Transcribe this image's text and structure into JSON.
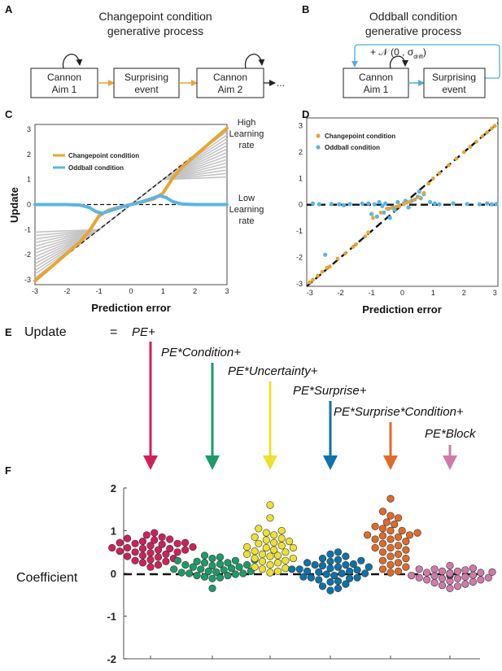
{
  "panels": {
    "A": {
      "letter": "A",
      "title_line1": "Changepoint condition",
      "title_line2": "generative process",
      "box1_line1": "Cannon",
      "box1_line2": "Aim 1",
      "box2_line1": "Surprising",
      "box2_line2": "event",
      "box3_line1": "Cannon",
      "box3_line2": "Aim 2",
      "ellipsis": "..."
    },
    "B": {
      "letter": "B",
      "title_line1": "Oddball condition",
      "title_line2": "generative process",
      "box1_line1": "Cannon",
      "box1_line2": "Aim 1",
      "box2_line1": "Surprising",
      "box2_line2": "event",
      "drift_label": "+ 𝒩 (0 , σ",
      "drift_sub": "drift",
      "drift_close": ")"
    },
    "C": {
      "letter": "C",
      "high_line1": "High",
      "high_line2": "Learning",
      "high_line3": "rate",
      "low_line1": "Low",
      "low_line2": "Learning",
      "low_line3": "rate"
    },
    "D": {
      "letter": "D"
    },
    "E": {
      "letter": "E",
      "lhs": "Update",
      "equals": "=",
      "terms": [
        "PE+",
        "PE*Condition+",
        "PE*Uncertainty+",
        "PE*Surprise+",
        "PE*Surprise*Condition+",
        "PE*Block"
      ]
    },
    "F": {
      "letter": "F",
      "ylabel": "Coefficient"
    }
  },
  "colors": {
    "orange": "#E8A530",
    "blue": "#5BB4E5",
    "gray": "#c4c4c4",
    "arrow_orange": "#E8A530",
    "arrow_blue": "#4FAEE0",
    "terms": [
      "#D0205A",
      "#1E9A6A",
      "#ECE030",
      "#0D72A8",
      "#E06A28",
      "#CF7BAA"
    ]
  },
  "chart_data": [
    {
      "type": "line",
      "panel": "C",
      "xlabel": "Prediction error",
      "ylabel": "Update",
      "xlim": [
        -3,
        3
      ],
      "ylim": [
        -3.2,
        3.2
      ],
      "xticks": [
        -3,
        -2,
        -1,
        0,
        1,
        2,
        3
      ],
      "yticks": [
        -3,
        -2,
        -1,
        0,
        1,
        2,
        3
      ],
      "gray_learning_rates": [
        0.05,
        0.12,
        0.19,
        0.26,
        0.33,
        0.4,
        0.47,
        0.54,
        0.61,
        0.68,
        0.75,
        0.82,
        0.89,
        0.96
      ],
      "legend": [
        "Changepoint condition",
        "Oddball condition"
      ],
      "series": [
        {
          "name": "Changepoint condition",
          "x": [
            -3,
            -2.5,
            -2,
            -1.6,
            -1.3,
            -1,
            -0.7,
            -0.4,
            0,
            0.4,
            0.7,
            1,
            1.3,
            1.6,
            2,
            2.5,
            3
          ],
          "y": [
            -3.05,
            -2.5,
            -1.95,
            -1.5,
            -1.05,
            -0.45,
            -0.22,
            -0.12,
            0,
            0.12,
            0.22,
            0.45,
            1.05,
            1.5,
            1.95,
            2.5,
            3.05
          ]
        },
        {
          "name": "Oddball condition",
          "x": [
            -3,
            -2,
            -1.6,
            -1.3,
            -1.1,
            -0.9,
            -0.6,
            -0.3,
            0,
            0.3,
            0.6,
            0.9,
            1.1,
            1.3,
            1.6,
            2,
            3
          ],
          "y": [
            0,
            0,
            -0.02,
            -0.12,
            -0.28,
            -0.35,
            -0.22,
            -0.1,
            0,
            0.1,
            0.22,
            0.35,
            0.28,
            0.12,
            0.02,
            0,
            0
          ]
        }
      ]
    },
    {
      "type": "scatter",
      "panel": "D",
      "xlabel": "Prediction error",
      "xlim": [
        -3.1,
        3.1
      ],
      "ylim": [
        -3.1,
        3.3
      ],
      "xticks": [
        -3,
        -2,
        -1,
        0,
        1,
        2,
        3
      ],
      "yticks": [
        -3,
        -2,
        -1,
        0,
        1,
        2,
        3
      ],
      "legend": [
        "Changepoint condition",
        "Oddball condition"
      ],
      "series": [
        {
          "name": "Changepoint condition",
          "x": [
            -3,
            -2.9,
            -2.75,
            -2.6,
            -2.45,
            -2.35,
            -2.1,
            -1.85,
            -1.6,
            -1.5,
            -1.2,
            -1.1,
            -0.95,
            -0.7,
            -0.5,
            -0.35,
            -0.2,
            -0.1,
            0.05,
            0.15,
            0.25,
            0.4,
            0.55,
            0.7,
            0.85,
            1,
            1.2,
            1.5,
            1.75,
            2,
            2.2,
            2.4,
            2.6,
            2.75,
            2.9,
            3
          ],
          "y": [
            -2.95,
            -2.85,
            -2.7,
            -2.55,
            -2.4,
            -2.35,
            -2.05,
            -1.85,
            -1.6,
            -1.5,
            -1.2,
            -1.05,
            -0.5,
            -0.3,
            -0.15,
            -0.12,
            -0.08,
            -0.03,
            0.02,
            0.08,
            0.12,
            0.2,
            0.28,
            0.45,
            0.8,
            1.0,
            1.2,
            1.5,
            1.75,
            2.0,
            2.2,
            2.4,
            2.6,
            2.75,
            2.9,
            3.0
          ]
        },
        {
          "name": "Oddball condition",
          "x": [
            -2.9,
            -2.7,
            -2.3,
            -2.5,
            -2.05,
            -1.7,
            -1.1,
            -1.0,
            -0.9,
            -0.82,
            -0.75,
            -0.65,
            -0.6,
            -0.55,
            -0.45,
            -0.4,
            -0.3,
            -0.25,
            -0.15,
            -0.1,
            0.05,
            0.1,
            0.2,
            0.3,
            0.4,
            0.5,
            0.55,
            0.6,
            0.7,
            0.9,
            1.05,
            1.2,
            1.65,
            2.1,
            2.5,
            2.75,
            2.9,
            3.05,
            -1.9,
            -1.3
          ],
          "y": [
            0.05,
            0.02,
            0.03,
            -1.9,
            0.02,
            0.03,
            0.05,
            -0.35,
            0.02,
            -0.45,
            0.1,
            -0.05,
            -0.3,
            0.05,
            -0.15,
            -0.5,
            -0.1,
            -0.2,
            0.1,
            -0.05,
            0.05,
            0.15,
            -0.1,
            0.15,
            0.2,
            0.3,
            0.5,
            0.25,
            0.4,
            0.1,
            0.05,
            0.02,
            0.05,
            0.03,
            0.02,
            0.05,
            0.02,
            0.03,
            -0.02,
            0.04
          ]
        }
      ]
    },
    {
      "type": "scatter",
      "panel": "F",
      "ylabel": "Coefficient",
      "ylim": [
        -2,
        2
      ],
      "yticks": [
        -2,
        -1,
        0,
        1,
        2
      ],
      "categories": [
        "PE+",
        "PE*Condition+",
        "PE*Uncertainty+",
        "PE*Surprise+",
        "PE*Surprise*Condition+",
        "PE*Block"
      ],
      "series": [
        {
          "name": "PE+",
          "values": [
            0.95,
            0.9,
            0.85,
            0.82,
            0.8,
            0.78,
            0.75,
            0.72,
            0.7,
            0.7,
            0.68,
            0.65,
            0.62,
            0.6,
            0.6,
            0.58,
            0.55,
            0.55,
            0.52,
            0.5,
            0.5,
            0.48,
            0.45,
            0.42,
            0.4,
            0.38,
            0.35,
            0.32,
            0.3,
            0.28,
            0.25,
            0.2,
            0.15,
            0.65,
            0.72,
            0.58
          ]
        },
        {
          "name": "PE*Condition+",
          "values": [
            0.42,
            0.38,
            0.35,
            0.32,
            0.3,
            0.28,
            0.25,
            0.22,
            0.2,
            0.18,
            0.15,
            0.12,
            0.1,
            0.08,
            0.05,
            0.03,
            0.02,
            0.0,
            -0.02,
            -0.05,
            -0.08,
            -0.1,
            -0.12,
            -0.35,
            0.25,
            0.15,
            0.05,
            -0.05,
            0.1,
            0.2,
            0.3,
            0.0
          ]
        },
        {
          "name": "PE*Uncertainty+",
          "values": [
            1.6,
            1.3,
            1.05,
            1.0,
            0.95,
            0.9,
            0.85,
            0.82,
            0.78,
            0.75,
            0.72,
            0.7,
            0.65,
            0.62,
            0.6,
            0.55,
            0.52,
            0.5,
            0.45,
            0.42,
            0.4,
            0.35,
            0.3,
            0.28,
            0.25,
            0.2,
            0.15,
            0.12,
            0.1,
            0.05,
            0.02,
            0.6,
            0.45,
            0.35
          ]
        },
        {
          "name": "PE*Surprise+",
          "values": [
            0.5,
            0.45,
            0.4,
            0.35,
            0.32,
            0.3,
            0.28,
            0.25,
            0.22,
            0.2,
            0.18,
            0.15,
            0.12,
            0.1,
            0.08,
            0.05,
            0.03,
            0.0,
            -0.02,
            -0.05,
            -0.08,
            -0.1,
            -0.12,
            -0.15,
            -0.18,
            -0.2,
            -0.25,
            -0.3,
            -0.35,
            -0.4,
            0.1,
            0.2,
            0.0,
            -0.1,
            0.15,
            0.05
          ]
        },
        {
          "name": "PE*Surprise*Condition+",
          "values": [
            1.75,
            1.45,
            1.35,
            1.3,
            1.2,
            1.15,
            1.1,
            1.05,
            1.0,
            0.95,
            0.9,
            0.88,
            0.85,
            0.8,
            0.75,
            0.7,
            0.65,
            0.6,
            0.55,
            0.5,
            0.45,
            0.4,
            0.35,
            0.3,
            0.25,
            0.2,
            0.15,
            0.1,
            0.05,
            0.02,
            1.0,
            0.8,
            0.6,
            0.9
          ]
        },
        {
          "name": "PE*Block",
          "values": [
            0.18,
            0.12,
            0.1,
            0.08,
            0.05,
            0.03,
            0.02,
            0.0,
            0.0,
            -0.02,
            -0.03,
            -0.05,
            -0.06,
            -0.08,
            -0.1,
            -0.12,
            -0.15,
            -0.18,
            -0.2,
            -0.22,
            -0.25,
            -0.28,
            -0.3,
            -0.35,
            0.05,
            -0.05,
            0.0,
            -0.1,
            0.02,
            -0.15,
            -0.02,
            0.1,
            -0.04,
            -0.12
          ]
        }
      ]
    }
  ]
}
